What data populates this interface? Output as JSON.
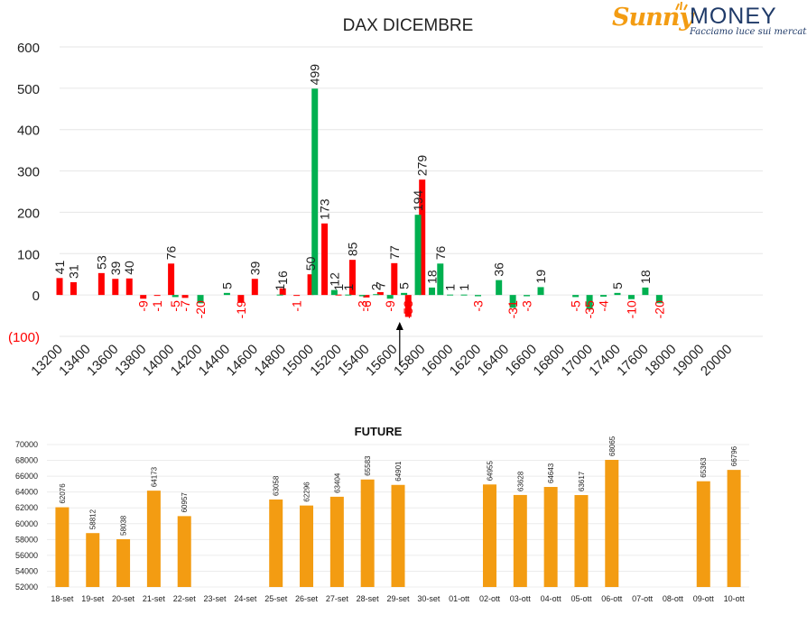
{
  "logo": {
    "brand_left": "Sunny",
    "brand_right": "MONEY",
    "tagline": "Facciamo luce sui mercati",
    "colors": {
      "sunny": "#f39c12",
      "money": "#1f3a68"
    }
  },
  "chart_data": [
    {
      "type": "bar",
      "title": "DAX DICEMBRE",
      "ylim": [
        -100,
        600
      ],
      "yticks": [
        "(100)",
        "0",
        "100",
        "200",
        "300",
        "400",
        "500",
        "600"
      ],
      "ytick_values": [
        -100,
        0,
        100,
        200,
        300,
        400,
        500,
        600
      ],
      "categories": [
        "13200",
        "13400",
        "13600",
        "13800",
        "14000",
        "14200",
        "14400",
        "14600",
        "14800",
        "15000",
        "15200",
        "15400",
        "15600",
        "15800",
        "16000",
        "16200",
        "16400",
        "16600",
        "16800",
        "17000",
        "17400",
        "17600",
        "18000",
        "19000",
        "20000"
      ],
      "series": [
        {
          "color": "#ff0000",
          "bars": [
            {
              "i": 0.0,
              "v": 41
            },
            {
              "i": 0.5,
              "v": 31
            },
            {
              "i": 1.5,
              "v": 53
            },
            {
              "i": 2.0,
              "v": 39
            },
            {
              "i": 2.5,
              "v": 40
            },
            {
              "i": 3.0,
              "v": -9
            },
            {
              "i": 3.5,
              "v": -1
            },
            {
              "i": 4.0,
              "v": 76
            },
            {
              "i": 4.5,
              "v": -7
            },
            {
              "i": 6.5,
              "v": -19
            },
            {
              "i": 7.0,
              "v": 39
            },
            {
              "i": 8.0,
              "v": 16
            },
            {
              "i": 8.5,
              "v": -1
            },
            {
              "i": 9.0,
              "v": 50
            },
            {
              "i": 9.5,
              "v": 173
            },
            {
              "i": 10.0,
              "v": 1
            },
            {
              "i": 10.5,
              "v": 85
            },
            {
              "i": 11.0,
              "v": -6
            },
            {
              "i": 11.5,
              "v": 7
            },
            {
              "i": 12.0,
              "v": 77
            },
            {
              "i": 12.5,
              "v": -53
            },
            {
              "i": 13.0,
              "v": 279
            }
          ]
        },
        {
          "color": "#00b050",
          "bars": [
            {
              "i": 4.15,
              "v": -5
            },
            {
              "i": 5.05,
              "v": -20
            },
            {
              "i": 6.0,
              "v": 5
            },
            {
              "i": 7.9,
              "v": 1
            },
            {
              "i": 9.15,
              "v": 499
            },
            {
              "i": 9.85,
              "v": 12
            },
            {
              "i": 10.35,
              "v": 1
            },
            {
              "i": 10.85,
              "v": -3
            },
            {
              "i": 11.35,
              "v": 2
            },
            {
              "i": 11.85,
              "v": -9
            },
            {
              "i": 12.35,
              "v": 5
            },
            {
              "i": 12.85,
              "v": 194
            },
            {
              "i": 13.35,
              "v": 18
            },
            {
              "i": 13.65,
              "v": 76
            },
            {
              "i": 14.0,
              "v": 1
            },
            {
              "i": 14.5,
              "v": 1
            },
            {
              "i": 15.0,
              "v": -3
            },
            {
              "i": 15.75,
              "v": 36
            },
            {
              "i": 16.25,
              "v": -31
            },
            {
              "i": 16.75,
              "v": -3
            },
            {
              "i": 17.25,
              "v": 19
            },
            {
              "i": 18.5,
              "v": -5
            },
            {
              "i": 19.0,
              "v": -35
            },
            {
              "i": 19.5,
              "v": -4
            },
            {
              "i": 20.0,
              "v": 5
            },
            {
              "i": 20.5,
              "v": -10
            },
            {
              "i": 21.0,
              "v": 18
            },
            {
              "i": 21.5,
              "v": -20
            }
          ]
        }
      ],
      "annotation_arrow_at": 15600,
      "grid": true
    },
    {
      "type": "bar",
      "title": "FUTURE",
      "ylim": [
        52000,
        70000
      ],
      "yticks": [
        "52000",
        "54000",
        "56000",
        "58000",
        "60000",
        "62000",
        "64000",
        "66000",
        "68000",
        "70000"
      ],
      "ytick_values": [
        52000,
        54000,
        56000,
        58000,
        60000,
        62000,
        64000,
        66000,
        68000,
        70000
      ],
      "categories": [
        "18-set",
        "19-set",
        "20-set",
        "21-set",
        "22-set",
        "23-set",
        "24-set",
        "25-set",
        "26-set",
        "27-set",
        "28-set",
        "29-set",
        "30-set",
        "01-ott",
        "02-ott",
        "03-ott",
        "04-ott",
        "05-ott",
        "06-ott",
        "07-ott",
        "08-ott",
        "09-ott",
        "10-ott"
      ],
      "values": [
        62076,
        58812,
        58038,
        64173,
        60957,
        null,
        null,
        63058,
        62296,
        63404,
        65583,
        64901,
        null,
        null,
        64955,
        63628,
        64643,
        63617,
        68065,
        null,
        null,
        65363,
        66796
      ],
      "value_labels": [
        "62076",
        "58812",
        "58038",
        "64173",
        "60957",
        "",
        "",
        "63058",
        "62296",
        "63404",
        "65583",
        "64901",
        "",
        "",
        "64955",
        "63628",
        "64643",
        "63617",
        "68065",
        "",
        "",
        "65363",
        "66796"
      ],
      "color": "#f39c12"
    }
  ]
}
